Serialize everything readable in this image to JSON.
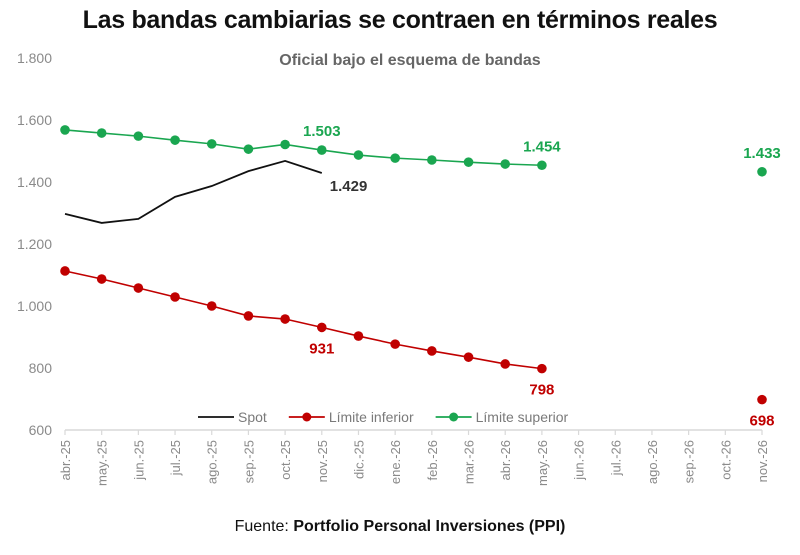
{
  "title": "Las bandas cambiarias se contraen en términos reales",
  "source": {
    "prefix": "Fuente: ",
    "name": "Portfolio Personal Inversiones (PPI)"
  },
  "chart_data": {
    "type": "line",
    "title": "Las bandas cambiarias se contraen en términos reales",
    "subtitle": "Oficial bajo el esquema de bandas",
    "xlabel": "",
    "ylabel": "",
    "ylim": [
      600,
      1800
    ],
    "yticks": [
      600,
      800,
      1000,
      1200,
      1400,
      1600,
      1800
    ],
    "ytick_labels": [
      "600",
      "800",
      "1.000",
      "1.200",
      "1.400",
      "1.600",
      "1.800"
    ],
    "grid": false,
    "legend_position": "bottom-center-inside",
    "categories": [
      "abr.-25",
      "may.-25",
      "jun.-25",
      "jul.-25",
      "ago.-25",
      "sep.-25",
      "oct.-25",
      "nov.-25",
      "dic.-25",
      "ene.-26",
      "feb.-26",
      "mar.-26",
      "abr.-26",
      "may.-26",
      "jun.-26",
      "jul.-26",
      "ago.-26",
      "sep.-26",
      "oct.-26",
      "nov.-26"
    ],
    "series": [
      {
        "name": "Spot",
        "color": "#111111",
        "markers": false,
        "values": [
          1297,
          1268,
          1281,
          1352,
          1387,
          1435,
          1468,
          1429,
          null,
          null,
          null,
          null,
          null,
          null,
          null,
          null,
          null,
          null,
          null,
          null
        ]
      },
      {
        "name": "Límite inferior",
        "color": "#c00000",
        "markers": true,
        "values": [
          1113,
          1087,
          1058,
          1029,
          1000,
          968,
          958,
          931,
          903,
          877,
          855,
          835,
          813,
          798,
          null,
          null,
          null,
          null,
          null,
          698
        ]
      },
      {
        "name": "Límite superior",
        "color": "#1aa650",
        "markers": true,
        "values": [
          1568,
          1558,
          1548,
          1535,
          1523,
          1506,
          1521,
          1503,
          1487,
          1477,
          1471,
          1464,
          1458,
          1454,
          null,
          null,
          null,
          null,
          null,
          1433
        ]
      }
    ],
    "annotations": [
      {
        "series": "Límite superior",
        "category": "nov.-25",
        "text": "1.503",
        "color": "#1aa650",
        "position": "above"
      },
      {
        "series": "Límite superior",
        "category": "may.-26",
        "text": "1.454",
        "color": "#1aa650",
        "position": "above"
      },
      {
        "series": "Límite superior",
        "category": "nov.-26",
        "text": "1.433",
        "color": "#1aa650",
        "position": "above"
      },
      {
        "series": "Spot",
        "category": "nov.-25",
        "text": "1.429",
        "color": "#333333",
        "position": "below-right"
      },
      {
        "series": "Límite inferior",
        "category": "nov.-25",
        "text": "931",
        "color": "#c00000",
        "position": "below"
      },
      {
        "series": "Límite inferior",
        "category": "may.-26",
        "text": "798",
        "color": "#c00000",
        "position": "below"
      },
      {
        "series": "Límite inferior",
        "category": "nov.-26",
        "text": "698",
        "color": "#c00000",
        "position": "below"
      }
    ]
  }
}
